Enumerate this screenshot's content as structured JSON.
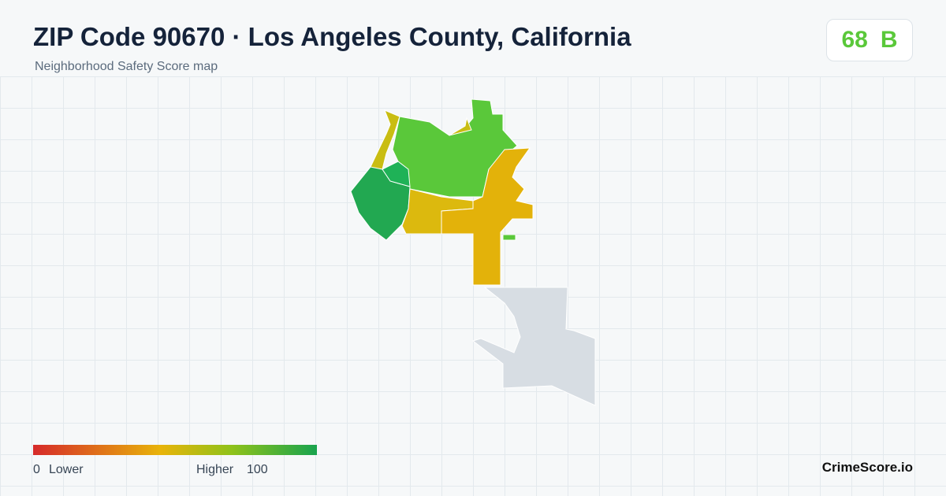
{
  "header": {
    "title": "ZIP Code 90670 · Los Angeles County, California",
    "subtitle": "Neighborhood Safety Score map"
  },
  "score": {
    "value": 68,
    "grade": "B"
  },
  "legend": {
    "min": 0,
    "min_label": "Lower",
    "max_label": "Higher",
    "max": 100
  },
  "brand": "CrimeScore.io"
}
